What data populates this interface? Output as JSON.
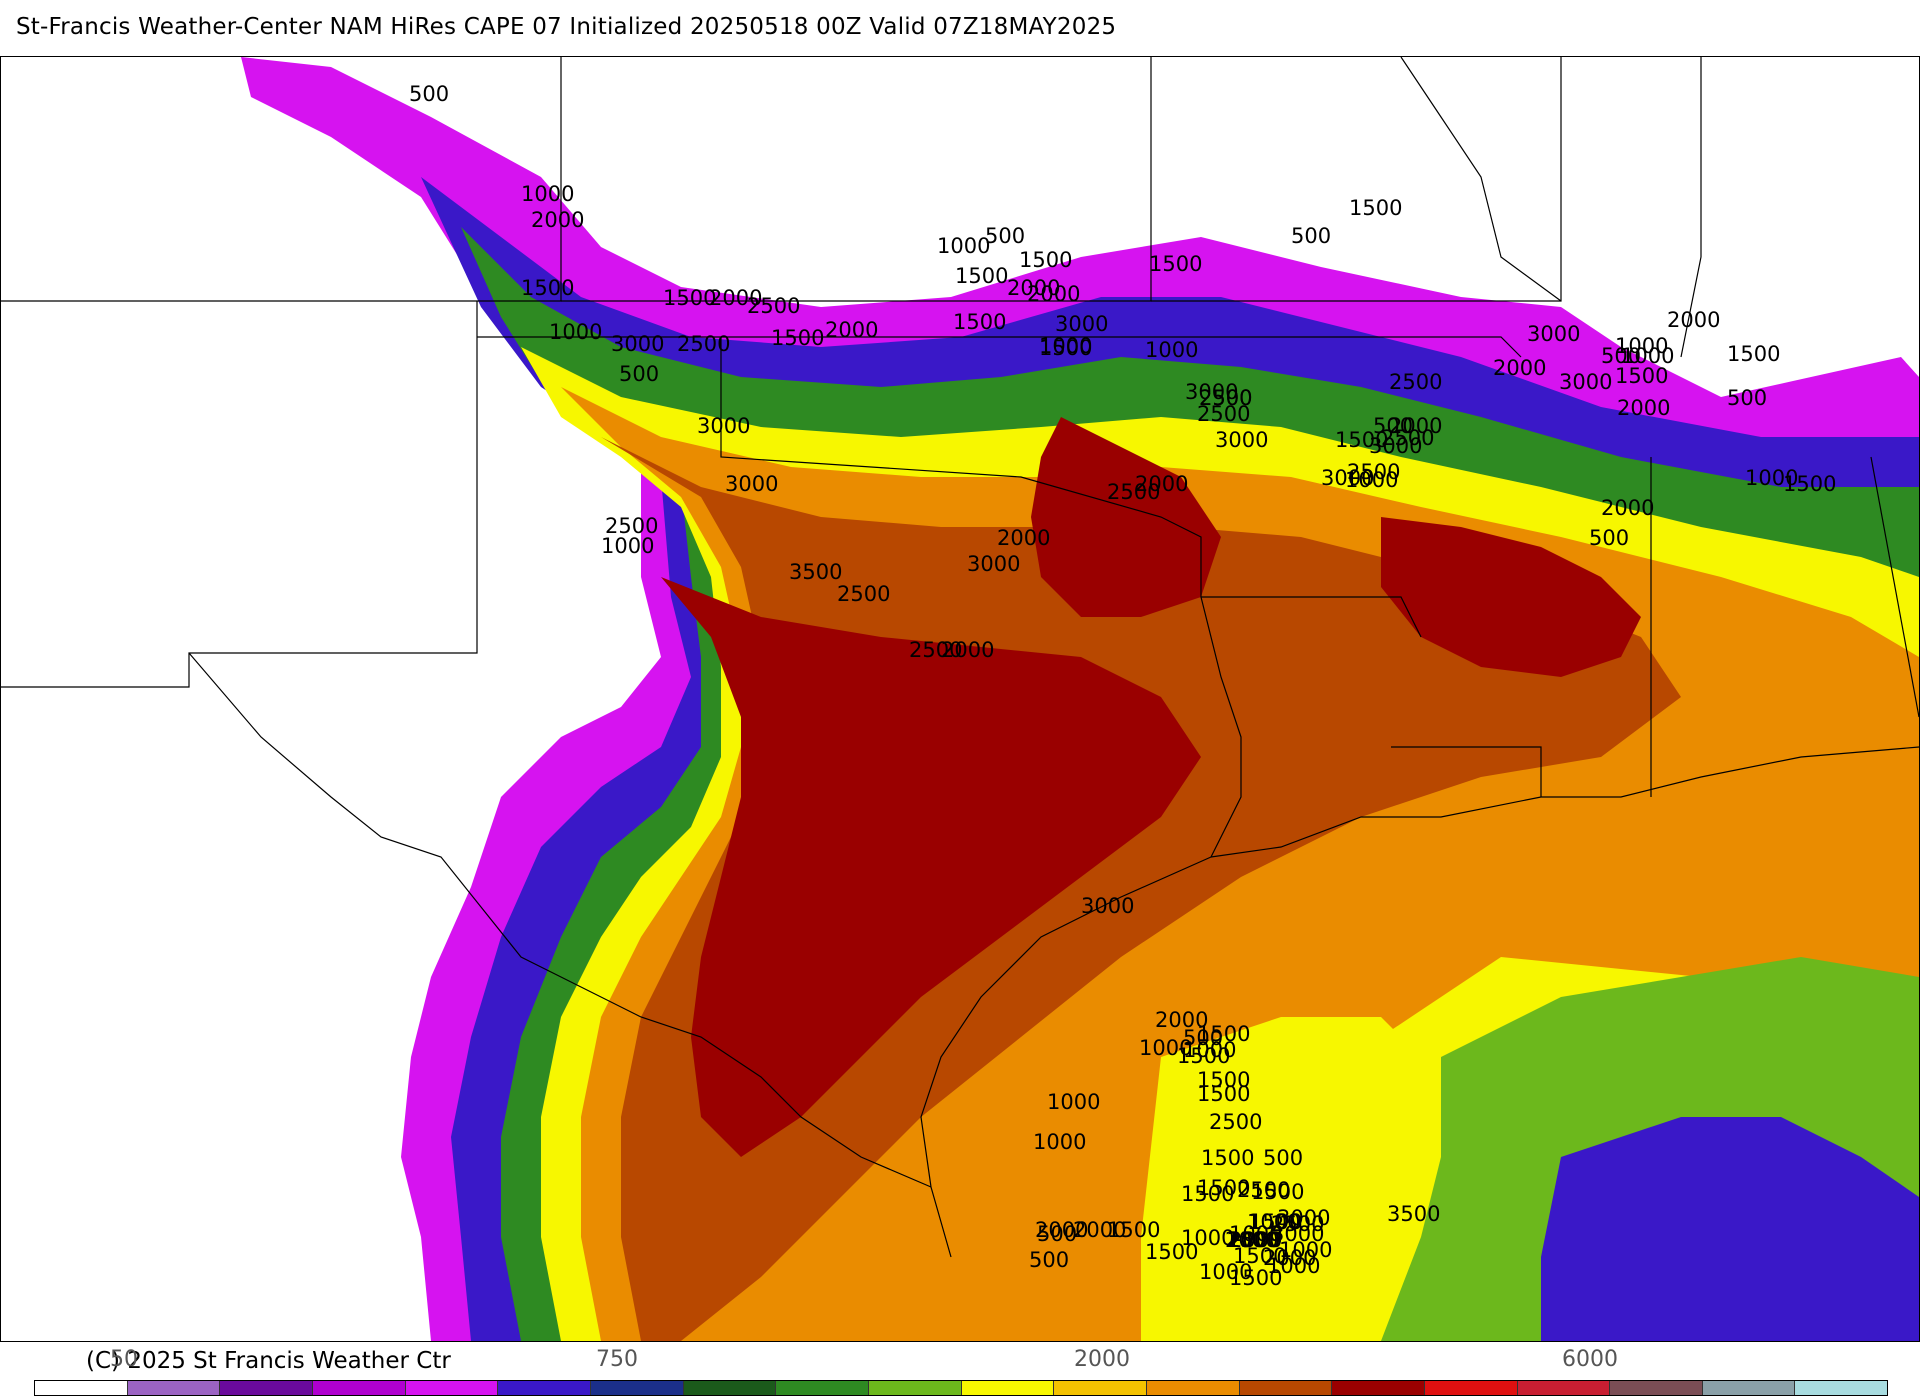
{
  "header": {
    "title": "St-Francis Weather-Center NAM HiRes CAPE  07 Initialized 20250518 00Z Valid 07Z18MAY2025"
  },
  "footer": {
    "copyright": "(C) 2025 St Francis Weather Ctr",
    "scale_labels": [
      "50",
      "750",
      "2000",
      "6000"
    ]
  },
  "colors": {
    "scale": [
      "#ffffff",
      "#9b63c3",
      "#6a0a9c",
      "#b000d0",
      "#d613f0",
      "#3a18c8",
      "#1b2f8a",
      "#1b5a1b",
      "#2e8a22",
      "#6cb81c",
      "#f7f700",
      "#f4c200",
      "#ea8c00",
      "#b84800",
      "#9a0000",
      "#e01010",
      "#c81e32",
      "#7a4d55",
      "#8aa0a8",
      "#a8dce0"
    ],
    "land": "#ffffff",
    "borders": "#000000"
  },
  "map": {
    "contour_labels": [
      {
        "text": "500"
      },
      {
        "text": "1000"
      },
      {
        "text": "2000"
      },
      {
        "text": "1500"
      },
      {
        "text": "1000"
      },
      {
        "text": "3000"
      },
      {
        "text": "2500"
      },
      {
        "text": "500"
      },
      {
        "text": "1500"
      },
      {
        "text": "2500"
      },
      {
        "text": "1000"
      },
      {
        "text": "500"
      },
      {
        "text": "1500"
      },
      {
        "text": "2000"
      },
      {
        "text": "1500"
      },
      {
        "text": "3000"
      },
      {
        "text": "2000"
      },
      {
        "text": "1500"
      },
      {
        "text": "1500"
      },
      {
        "text": "500"
      },
      {
        "text": "500"
      },
      {
        "text": "1000"
      },
      {
        "text": "1500"
      },
      {
        "text": "2000"
      },
      {
        "text": "2500"
      },
      {
        "text": "3000"
      },
      {
        "text": "1000"
      },
      {
        "text": "3000"
      },
      {
        "text": "2000"
      },
      {
        "text": "500"
      },
      {
        "text": "2500"
      },
      {
        "text": "3000"
      },
      {
        "text": "2000"
      },
      {
        "text": "1500"
      },
      {
        "text": "2500"
      },
      {
        "text": "3000"
      },
      {
        "text": "500"
      },
      {
        "text": "2000"
      },
      {
        "text": "1000"
      },
      {
        "text": "1500"
      },
      {
        "text": "2000"
      },
      {
        "text": "3000"
      },
      {
        "text": "2500"
      },
      {
        "text": "500"
      },
      {
        "text": "1000"
      },
      {
        "text": "1500"
      },
      {
        "text": "2500"
      },
      {
        "text": "3500"
      },
      {
        "text": "2000"
      },
      {
        "text": "3000"
      },
      {
        "text": "2500"
      },
      {
        "text": "2000"
      },
      {
        "text": "3000"
      },
      {
        "text": "2500"
      },
      {
        "text": "2000"
      },
      {
        "text": "1500"
      },
      {
        "text": "1000"
      },
      {
        "text": "1500"
      },
      {
        "text": "1000"
      },
      {
        "text": "1500"
      },
      {
        "text": "3000"
      },
      {
        "text": "1000"
      },
      {
        "text": "2500"
      },
      {
        "text": "3000"
      },
      {
        "text": "2500"
      },
      {
        "text": "2000"
      },
      {
        "text": "2500"
      },
      {
        "text": "2000"
      },
      {
        "text": "1500"
      },
      {
        "text": "1500"
      },
      {
        "text": "1000"
      },
      {
        "text": "500"
      },
      {
        "text": "1500"
      },
      {
        "text": "1000"
      },
      {
        "text": "1500"
      },
      {
        "text": "2000"
      },
      {
        "text": "3000"
      },
      {
        "text": "3500"
      },
      {
        "text": "3000"
      },
      {
        "text": "1500"
      },
      {
        "text": "2000"
      },
      {
        "text": "1500"
      },
      {
        "text": "2500"
      },
      {
        "text": "500"
      },
      {
        "text": "2000"
      },
      {
        "text": "1500"
      },
      {
        "text": "1000"
      },
      {
        "text": "2000"
      },
      {
        "text": "3000"
      },
      {
        "text": "2000"
      },
      {
        "text": "1500"
      },
      {
        "text": "1000"
      },
      {
        "text": "1000"
      },
      {
        "text": "2500"
      },
      {
        "text": "1500"
      },
      {
        "text": "1500"
      },
      {
        "text": "2000"
      },
      {
        "text": "1500"
      },
      {
        "text": "1000"
      },
      {
        "text": "2500"
      },
      {
        "text": "1000"
      },
      {
        "text": "500"
      },
      {
        "text": "500"
      },
      {
        "text": "1000"
      },
      {
        "text": "1500"
      },
      {
        "text": "1500"
      },
      {
        "text": "1500"
      },
      {
        "text": "1000"
      },
      {
        "text": "1000"
      },
      {
        "text": "2000"
      }
    ]
  }
}
